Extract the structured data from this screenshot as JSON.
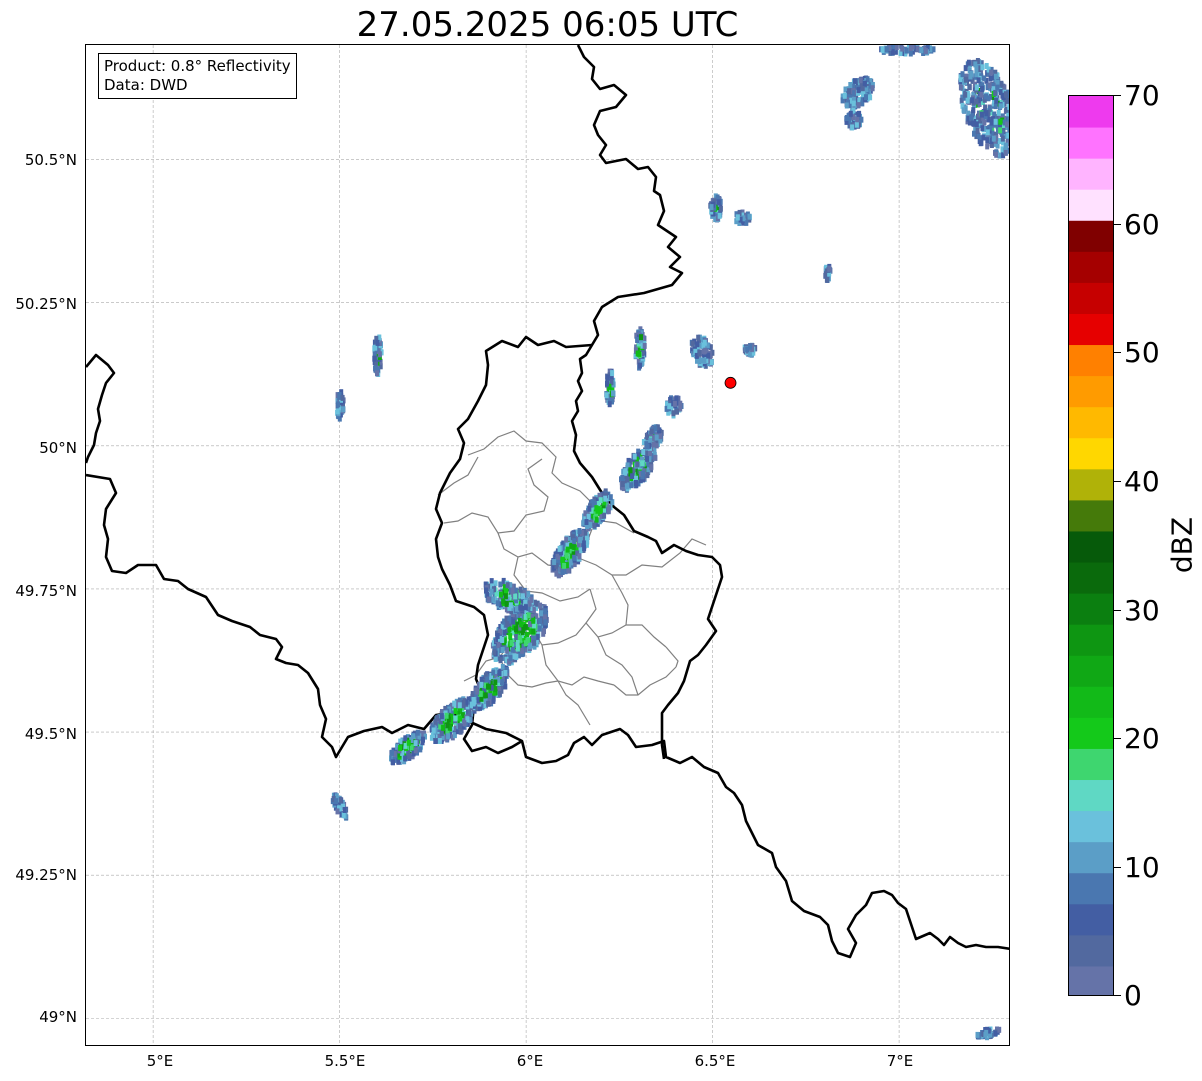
{
  "title": "27.05.2025 06:05 UTC",
  "info": {
    "product": "Product: 0.8° Reflectivity",
    "source": "Data: DWD"
  },
  "axes": {
    "lat_labels": [
      "50.5°N",
      "50.25°N",
      "50°N",
      "49.75°N",
      "49.5°N",
      "49.25°N",
      "49°N"
    ],
    "lat_values": [
      50.5,
      50.25,
      50.0,
      49.75,
      49.5,
      49.25,
      49.0
    ],
    "lon_labels": [
      "5°E",
      "5.5°E",
      "6°E",
      "6.5°E",
      "7°E"
    ],
    "lon_values": [
      5.0,
      5.5,
      6.0,
      6.5,
      7.0
    ],
    "lon_range": [
      4.82,
      7.3
    ],
    "lat_range": [
      48.95,
      50.7
    ],
    "grid": true
  },
  "marker": {
    "name": "radar-site-marker",
    "lon": 6.548,
    "lat": 50.11,
    "color": "#ff0000"
  },
  "colorbar": {
    "label": "dBZ",
    "min": 0,
    "max": 70,
    "tick_labels": [
      "0",
      "10",
      "20",
      "30",
      "40",
      "50",
      "60",
      "70"
    ],
    "tick_values": [
      0,
      10,
      20,
      30,
      40,
      50,
      60,
      70
    ],
    "step": 2.5,
    "colors": [
      "#6573a8",
      "#52699f",
      "#435ea3",
      "#4a77b0",
      "#5b9ec7",
      "#6ac1dc",
      "#5fd8c4",
      "#3ed66f",
      "#14c91a",
      "#12ba18",
      "#10a815",
      "#0e9612",
      "#0b7f10",
      "#0a6a0c",
      "#065a0a",
      "#457a0a",
      "#b0b208",
      "#ffd700",
      "#ffb900",
      "#ff9b00",
      "#ff8000",
      "#e60000",
      "#c60000",
      "#a50000",
      "#800000",
      "#ffe1ff",
      "#ffb4ff",
      "#ff73ff",
      "#ee3aee"
    ]
  }
}
